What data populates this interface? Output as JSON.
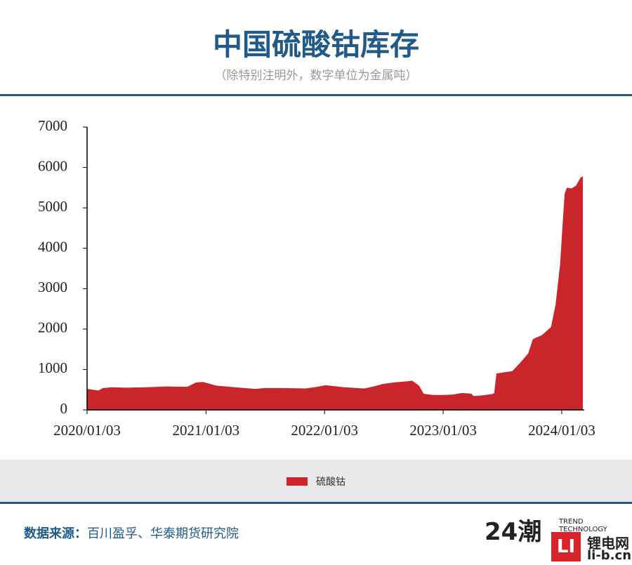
{
  "chart_data": {
    "type": "area",
    "title": "中国硫酸钴库存",
    "subtitle": "（除特别注明外，数字单位为金属吨）",
    "x": [
      "2020/01/03",
      "2020/02/07",
      "2020/02/21",
      "2020/03/20",
      "2020/05/01",
      "2020/07/03",
      "2020/09/04",
      "2020/11/06",
      "2020/12/04",
      "2020/12/25",
      "2021/02/05",
      "2021/04/02",
      "2021/06/04",
      "2021/07/02",
      "2021/09/03",
      "2021/11/05",
      "2021/12/03",
      "2022/01/07",
      "2022/03/04",
      "2022/05/06",
      "2022/06/03",
      "2022/07/01",
      "2022/08/05",
      "2022/09/02",
      "2022/09/30",
      "2022/10/21",
      "2022/11/04",
      "2022/12/02",
      "2023/01/06",
      "2023/02/03",
      "2023/03/03",
      "2023/03/31",
      "2023/04/07",
      "2023/05/05",
      "2023/06/02",
      "2023/06/09",
      "2023/06/16",
      "2023/08/04",
      "2023/09/01",
      "2023/09/22",
      "2023/10/06",
      "2023/11/03",
      "2023/12/01",
      "2023/12/15",
      "2023/12/29",
      "2024/01/05",
      "2024/01/12",
      "2024/01/19",
      "2024/02/02",
      "2024/02/16",
      "2024/03/01",
      "2024/03/08"
    ],
    "series": [
      {
        "name": "硫酸钴",
        "color": "#c9252b",
        "values": [
          520,
          480,
          540,
          560,
          550,
          560,
          580,
          570,
          680,
          690,
          600,
          560,
          520,
          540,
          540,
          530,
          560,
          610,
          560,
          530,
          580,
          640,
          680,
          700,
          720,
          600,
          400,
          370,
          370,
          380,
          420,
          400,
          340,
          360,
          390,
          410,
          900,
          960,
          1200,
          1400,
          1750,
          1850,
          2050,
          2600,
          3600,
          4500,
          5350,
          5500,
          5480,
          5550,
          5750,
          5780
        ]
      }
    ],
    "xlim": [
      "2020/01/03",
      "2024/03/08"
    ],
    "xticks": [
      "2020/01/03",
      "2021/01/03",
      "2022/01/03",
      "2023/01/03",
      "2024/01/03"
    ],
    "ylim": [
      0,
      7000
    ],
    "yticks": [
      0,
      1000,
      2000,
      3000,
      4000,
      5000,
      6000,
      7000
    ],
    "legend": "bottom"
  },
  "source": {
    "label": "数据来源：",
    "text": "百川盈孚、华泰期货研究院"
  },
  "logos": {
    "brand": "24潮",
    "brand_sub": "TREND TECHNOLOGY",
    "box": "LI",
    "site_name": "锂电网",
    "site_url": "li-b.cn"
  }
}
